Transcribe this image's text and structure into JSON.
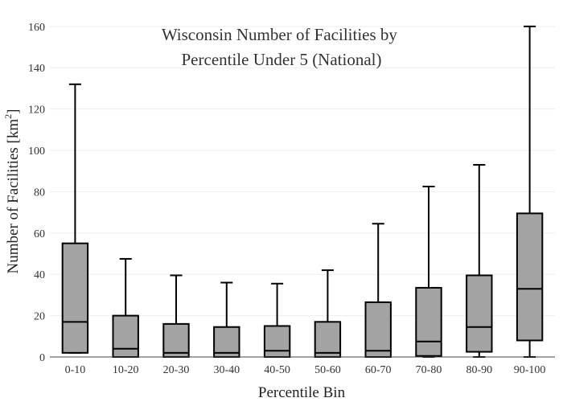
{
  "chart_data": {
    "type": "box",
    "title_lines": [
      "Wisconsin Number of Facilities by",
      "Percentile Under 5 (National)"
    ],
    "xlabel": "Percentile Bin",
    "ylabel_main": "Number of Facilities  [km",
    "ylabel_sup": "2",
    "ylabel_end": "]",
    "ylim": [
      0,
      165
    ],
    "yticks": [
      0,
      20,
      40,
      60,
      80,
      100,
      120,
      140,
      160
    ],
    "grid": true,
    "categories": [
      "0-10",
      "10-20",
      "20-30",
      "30-40",
      "40-50",
      "50-60",
      "60-70",
      "70-80",
      "80-90",
      "90-100"
    ],
    "boxes": [
      {
        "whisker_low": 2,
        "q1": 2,
        "median": 17,
        "q3": 55,
        "whisker_high": 132
      },
      {
        "whisker_low": 0,
        "q1": 0,
        "median": 4,
        "q3": 20,
        "whisker_high": 47.5
      },
      {
        "whisker_low": 0,
        "q1": 0,
        "median": 2,
        "q3": 16,
        "whisker_high": 39.5
      },
      {
        "whisker_low": 0,
        "q1": 0,
        "median": 2,
        "q3": 14.5,
        "whisker_high": 36
      },
      {
        "whisker_low": 0,
        "q1": 0,
        "median": 3,
        "q3": 15,
        "whisker_high": 35.5
      },
      {
        "whisker_low": 0,
        "q1": 0,
        "median": 2,
        "q3": 17,
        "whisker_high": 42
      },
      {
        "whisker_low": 0,
        "q1": 0,
        "median": 3,
        "q3": 26.5,
        "whisker_high": 64.5
      },
      {
        "whisker_low": 0,
        "q1": 0.5,
        "median": 7.5,
        "q3": 33.5,
        "whisker_high": 82.5
      },
      {
        "whisker_low": 0,
        "q1": 2.5,
        "median": 14.5,
        "q3": 39.5,
        "whisker_high": 93
      },
      {
        "whisker_low": 0,
        "q1": 8,
        "median": 33,
        "q3": 69.5,
        "whisker_high": 160
      }
    ],
    "colors": {
      "box_fill": "#a3a3a3",
      "box_stroke": "#000000",
      "grid": "#eeeeee",
      "axis": "#444444"
    }
  }
}
